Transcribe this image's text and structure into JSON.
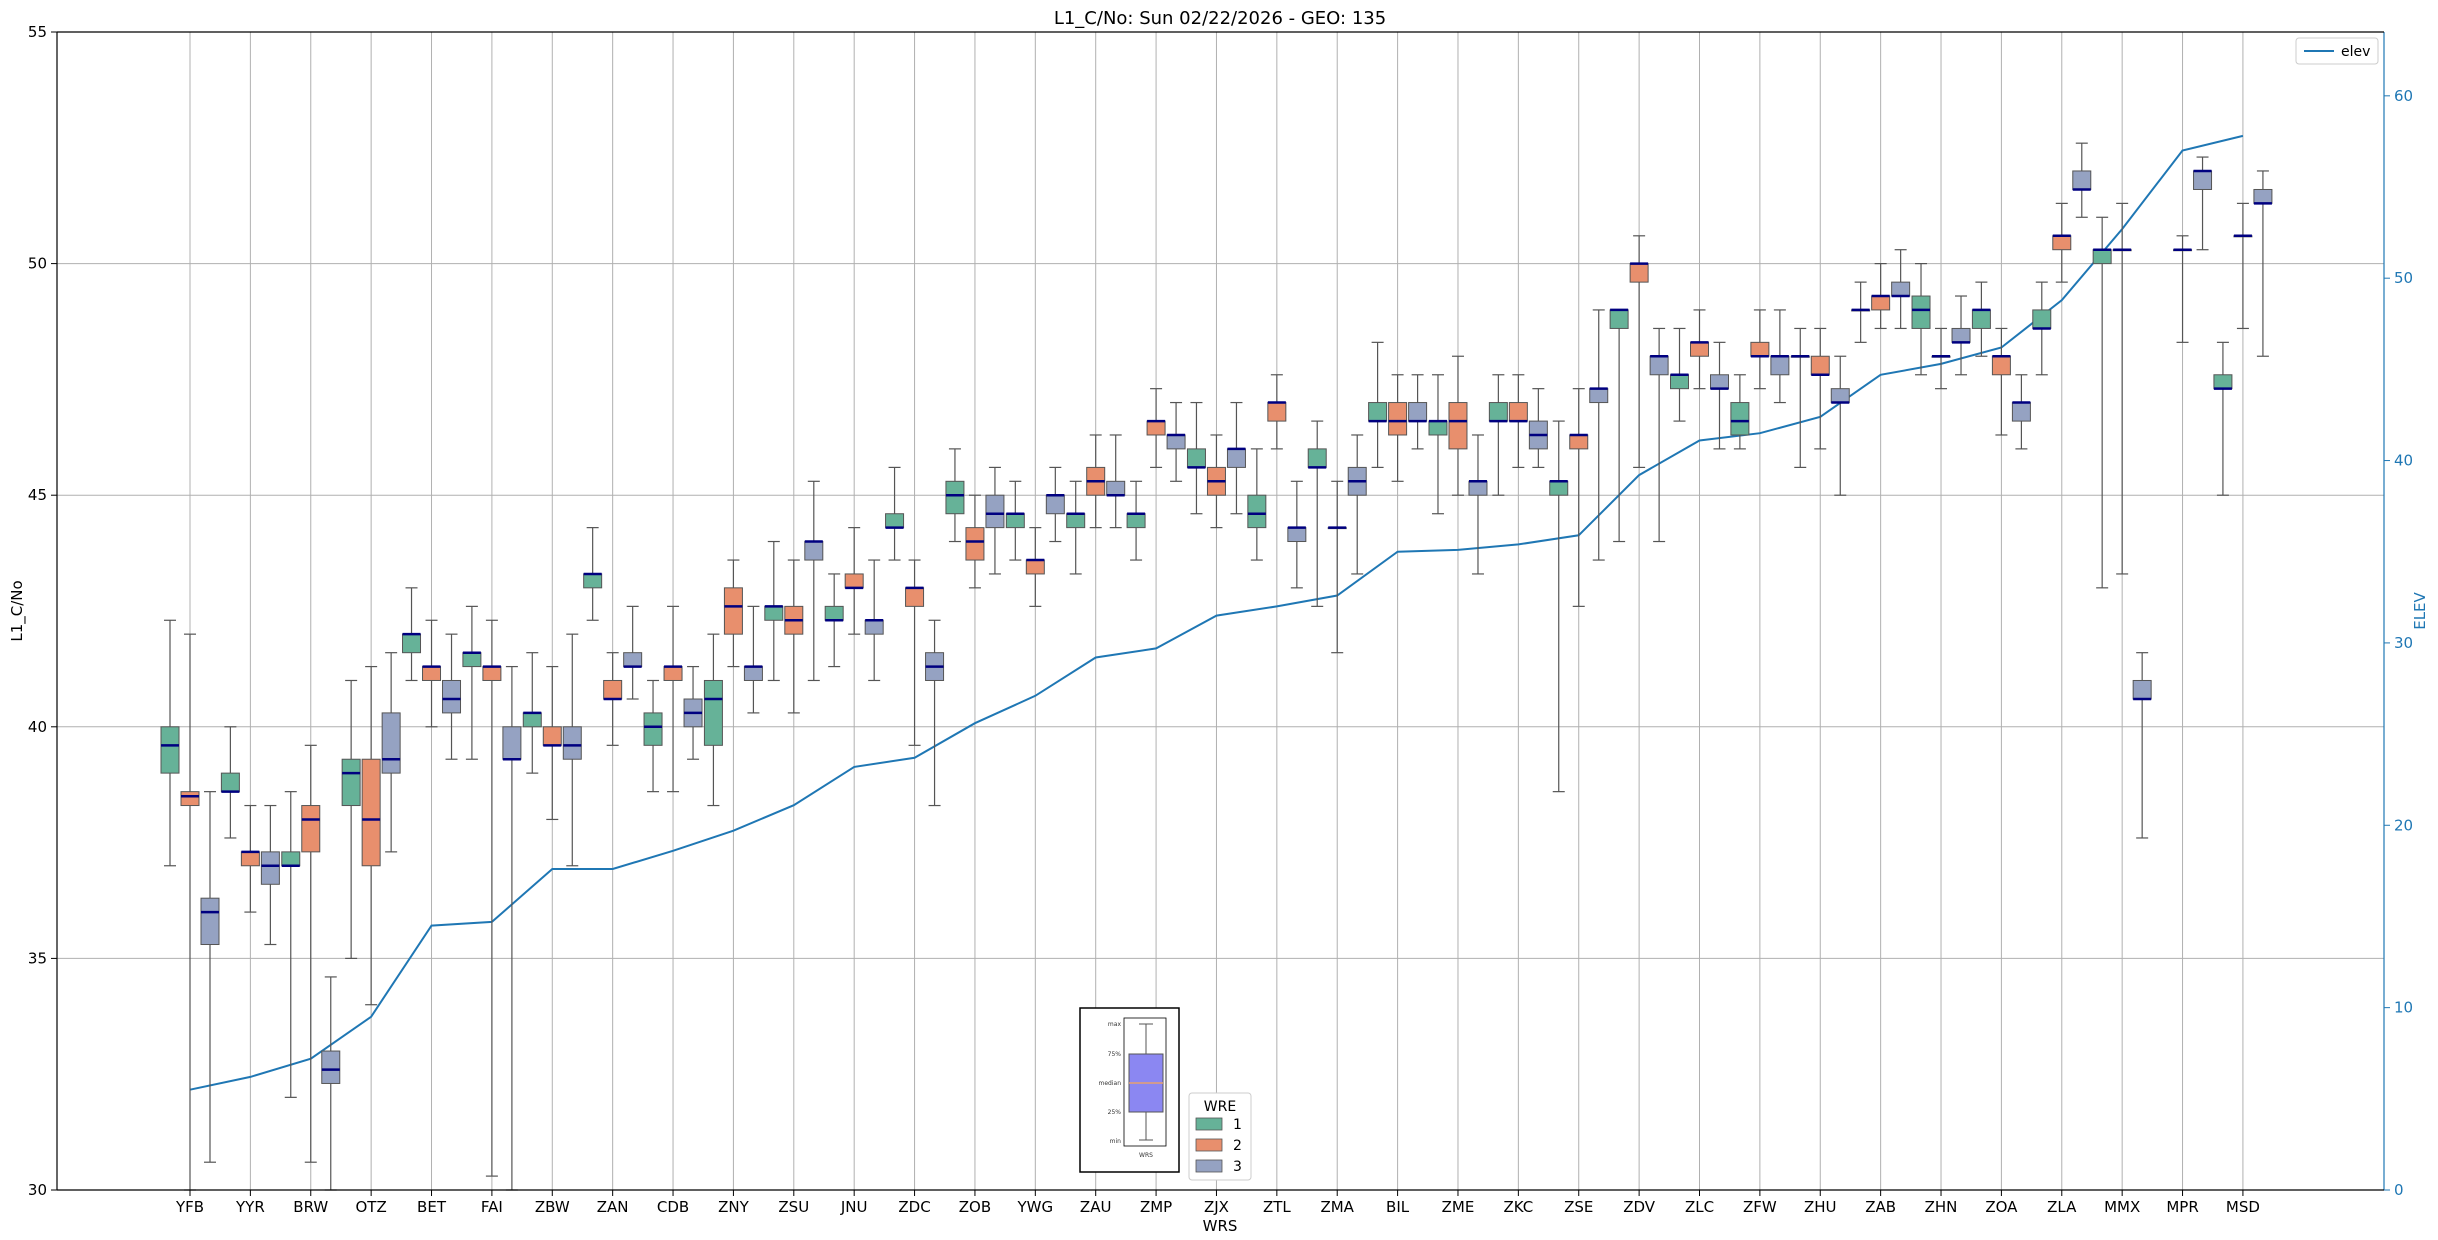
{
  "chart_data": {
    "type": "box",
    "title": "L1_C/No: Sun 02/22/2026 - GEO: 135",
    "xlabel": "WRS",
    "ylabel": "L1_C/No",
    "y2label": "ELEV",
    "ylim": [
      30,
      55
    ],
    "y2lim": [
      0,
      63.5
    ],
    "yticks": [
      30,
      35,
      40,
      45,
      50,
      55
    ],
    "y2ticks": [
      0,
      10,
      20,
      30,
      40,
      50,
      60
    ],
    "grid": true,
    "categories": [
      "YFB",
      "YYR",
      "BRW",
      "OTZ",
      "BET",
      "FAI",
      "ZBW",
      "ZAN",
      "CDB",
      "ZNY",
      "ZSU",
      "JNU",
      "ZDC",
      "ZOB",
      "YWG",
      "ZAU",
      "ZMP",
      "ZJX",
      "ZTL",
      "ZMA",
      "BIL",
      "ZME",
      "ZKC",
      "ZSE",
      "ZDV",
      "ZLC",
      "ZFW",
      "ZHU",
      "ZAB",
      "ZHN",
      "ZOA",
      "ZLA",
      "MMX",
      "MPR",
      "MSD"
    ],
    "wre_legend": {
      "title": "WRE",
      "entries": [
        "1",
        "2",
        "3"
      ]
    },
    "series_colors": {
      "1": "#66b298",
      "2": "#e88f6d",
      "3": "#95a2c2"
    },
    "elev_legend": "elev",
    "elev_color": "#1f77b4",
    "elev": [
      5.5,
      6.2,
      7.2,
      9.5,
      14.5,
      14.7,
      17.6,
      17.6,
      18.6,
      19.7,
      21.1,
      23.2,
      23.7,
      25.6,
      27.1,
      29.2,
      29.7,
      31.5,
      32.0,
      32.6,
      35.0,
      35.1,
      35.4,
      35.9,
      39.2,
      41.1,
      41.5,
      42.4,
      44.7,
      45.3,
      46.2,
      48.8,
      52.7,
      57.0,
      57.8
    ],
    "boxes": [
      {
        "cat": "YFB",
        "wre": "1",
        "min": 37.0,
        "q1": 39.0,
        "median": 39.6,
        "q3": 40.0,
        "max": 42.3
      },
      {
        "cat": "YFB",
        "wre": "2",
        "min": 30.0,
        "q1": 38.3,
        "median": 38.5,
        "q3": 38.6,
        "max": 42.0
      },
      {
        "cat": "YFB",
        "wre": "3",
        "min": 30.6,
        "q1": 35.3,
        "median": 36.0,
        "q3": 36.3,
        "max": 38.6
      },
      {
        "cat": "YYR",
        "wre": "1",
        "min": 37.6,
        "q1": 38.6,
        "median": 38.6,
        "q3": 39.0,
        "max": 40.0
      },
      {
        "cat": "YYR",
        "wre": "2",
        "min": 36.0,
        "q1": 37.0,
        "median": 37.3,
        "q3": 37.3,
        "max": 38.3
      },
      {
        "cat": "YYR",
        "wre": "3",
        "min": 35.3,
        "q1": 36.6,
        "median": 37.0,
        "q3": 37.3,
        "max": 38.3
      },
      {
        "cat": "BRW",
        "wre": "1",
        "min": 32.0,
        "q1": 37.0,
        "median": 37.0,
        "q3": 37.3,
        "max": 38.6
      },
      {
        "cat": "BRW",
        "wre": "2",
        "min": 30.6,
        "q1": 37.3,
        "median": 38.0,
        "q3": 38.3,
        "max": 39.6
      },
      {
        "cat": "BRW",
        "wre": "3",
        "min": 30.0,
        "q1": 32.3,
        "median": 32.6,
        "q3": 33.0,
        "max": 34.6
      },
      {
        "cat": "OTZ",
        "wre": "1",
        "min": 35.0,
        "q1": 38.3,
        "median": 39.0,
        "q3": 39.3,
        "max": 41.0
      },
      {
        "cat": "OTZ",
        "wre": "2",
        "min": 34.0,
        "q1": 37.0,
        "median": 38.0,
        "q3": 39.3,
        "max": 41.3
      },
      {
        "cat": "OTZ",
        "wre": "3",
        "min": 37.3,
        "q1": 39.0,
        "median": 39.3,
        "q3": 40.3,
        "max": 41.6
      },
      {
        "cat": "BET",
        "wre": "1",
        "min": 41.0,
        "q1": 41.6,
        "median": 42.0,
        "q3": 42.0,
        "max": 43.0
      },
      {
        "cat": "BET",
        "wre": "2",
        "min": 40.0,
        "q1": 41.0,
        "median": 41.3,
        "q3": 41.3,
        "max": 42.3
      },
      {
        "cat": "BET",
        "wre": "3",
        "min": 39.3,
        "q1": 40.3,
        "median": 40.6,
        "q3": 41.0,
        "max": 42.0
      },
      {
        "cat": "FAI",
        "wre": "1",
        "min": 39.3,
        "q1": 41.3,
        "median": 41.6,
        "q3": 41.6,
        "max": 42.6
      },
      {
        "cat": "FAI",
        "wre": "2",
        "min": 30.3,
        "q1": 41.0,
        "median": 41.3,
        "q3": 41.3,
        "max": 42.3
      },
      {
        "cat": "FAI",
        "wre": "3",
        "min": 30.0,
        "q1": 39.3,
        "median": 39.3,
        "q3": 40.0,
        "max": 41.3
      },
      {
        "cat": "ZBW",
        "wre": "1",
        "min": 39.0,
        "q1": 40.0,
        "median": 40.3,
        "q3": 40.3,
        "max": 41.6
      },
      {
        "cat": "ZBW",
        "wre": "2",
        "min": 38.0,
        "q1": 39.6,
        "median": 39.6,
        "q3": 40.0,
        "max": 41.3
      },
      {
        "cat": "ZBW",
        "wre": "3",
        "min": 37.0,
        "q1": 39.3,
        "median": 39.6,
        "q3": 40.0,
        "max": 42.0
      },
      {
        "cat": "ZAN",
        "wre": "1",
        "min": 42.3,
        "q1": 43.0,
        "median": 43.3,
        "q3": 43.3,
        "max": 44.3
      },
      {
        "cat": "ZAN",
        "wre": "2",
        "min": 39.6,
        "q1": 40.6,
        "median": 40.6,
        "q3": 41.0,
        "max": 41.6
      },
      {
        "cat": "ZAN",
        "wre": "3",
        "min": 40.6,
        "q1": 41.3,
        "median": 41.3,
        "q3": 41.6,
        "max": 42.6
      },
      {
        "cat": "CDB",
        "wre": "1",
        "min": 38.6,
        "q1": 39.6,
        "median": 40.0,
        "q3": 40.3,
        "max": 41.0
      },
      {
        "cat": "CDB",
        "wre": "2",
        "min": 38.6,
        "q1": 41.0,
        "median": 41.3,
        "q3": 41.3,
        "max": 42.6
      },
      {
        "cat": "CDB",
        "wre": "3",
        "min": 39.3,
        "q1": 40.0,
        "median": 40.3,
        "q3": 40.6,
        "max": 41.3
      },
      {
        "cat": "ZNY",
        "wre": "1",
        "min": 38.3,
        "q1": 39.6,
        "median": 40.6,
        "q3": 41.0,
        "max": 42.0
      },
      {
        "cat": "ZNY",
        "wre": "2",
        "min": 41.3,
        "q1": 42.0,
        "median": 42.6,
        "q3": 43.0,
        "max": 43.6
      },
      {
        "cat": "ZNY",
        "wre": "3",
        "min": 40.3,
        "q1": 41.0,
        "median": 41.3,
        "q3": 41.3,
        "max": 42.6
      },
      {
        "cat": "ZSU",
        "wre": "1",
        "min": 41.0,
        "q1": 42.3,
        "median": 42.6,
        "q3": 42.6,
        "max": 44.0
      },
      {
        "cat": "ZSU",
        "wre": "2",
        "min": 40.3,
        "q1": 42.0,
        "median": 42.3,
        "q3": 42.6,
        "max": 43.6
      },
      {
        "cat": "ZSU",
        "wre": "3",
        "min": 41.0,
        "q1": 43.6,
        "median": 44.0,
        "q3": 44.0,
        "max": 45.3
      },
      {
        "cat": "JNU",
        "wre": "1",
        "min": 41.3,
        "q1": 42.3,
        "median": 42.3,
        "q3": 42.6,
        "max": 43.3
      },
      {
        "cat": "JNU",
        "wre": "2",
        "min": 42.0,
        "q1": 43.0,
        "median": 43.0,
        "q3": 43.3,
        "max": 44.3
      },
      {
        "cat": "JNU",
        "wre": "3",
        "min": 41.0,
        "q1": 42.0,
        "median": 42.3,
        "q3": 42.3,
        "max": 43.6
      },
      {
        "cat": "ZDC",
        "wre": "1",
        "min": 43.6,
        "q1": 44.3,
        "median": 44.3,
        "q3": 44.6,
        "max": 45.6
      },
      {
        "cat": "ZDC",
        "wre": "2",
        "min": 39.6,
        "q1": 42.6,
        "median": 43.0,
        "q3": 43.0,
        "max": 43.6
      },
      {
        "cat": "ZDC",
        "wre": "3",
        "min": 38.3,
        "q1": 41.0,
        "median": 41.3,
        "q3": 41.6,
        "max": 42.3
      },
      {
        "cat": "ZOB",
        "wre": "1",
        "min": 44.0,
        "q1": 44.6,
        "median": 45.0,
        "q3": 45.3,
        "max": 46.0
      },
      {
        "cat": "ZOB",
        "wre": "2",
        "min": 43.0,
        "q1": 43.6,
        "median": 44.0,
        "q3": 44.3,
        "max": 45.0
      },
      {
        "cat": "ZOB",
        "wre": "3",
        "min": 43.3,
        "q1": 44.3,
        "median": 44.6,
        "q3": 45.0,
        "max": 45.6
      },
      {
        "cat": "YWG",
        "wre": "1",
        "min": 43.6,
        "q1": 44.3,
        "median": 44.6,
        "q3": 44.6,
        "max": 45.3
      },
      {
        "cat": "YWG",
        "wre": "2",
        "min": 42.6,
        "q1": 43.3,
        "median": 43.6,
        "q3": 43.6,
        "max": 44.3
      },
      {
        "cat": "YWG",
        "wre": "3",
        "min": 44.0,
        "q1": 44.6,
        "median": 45.0,
        "q3": 45.0,
        "max": 45.6
      },
      {
        "cat": "ZAU",
        "wre": "1",
        "min": 43.3,
        "q1": 44.3,
        "median": 44.6,
        "q3": 44.6,
        "max": 45.3
      },
      {
        "cat": "ZAU",
        "wre": "2",
        "min": 44.3,
        "q1": 45.0,
        "median": 45.3,
        "q3": 45.6,
        "max": 46.3
      },
      {
        "cat": "ZAU",
        "wre": "3",
        "min": 44.3,
        "q1": 45.0,
        "median": 45.0,
        "q3": 45.3,
        "max": 46.3
      },
      {
        "cat": "ZMP",
        "wre": "1",
        "min": 43.6,
        "q1": 44.3,
        "median": 44.6,
        "q3": 44.6,
        "max": 45.3
      },
      {
        "cat": "ZMP",
        "wre": "2",
        "min": 45.6,
        "q1": 46.3,
        "median": 46.6,
        "q3": 46.6,
        "max": 47.3
      },
      {
        "cat": "ZMP",
        "wre": "3",
        "min": 45.3,
        "q1": 46.0,
        "median": 46.3,
        "q3": 46.3,
        "max": 47.0
      },
      {
        "cat": "ZJX",
        "wre": "1",
        "min": 44.6,
        "q1": 45.6,
        "median": 45.6,
        "q3": 46.0,
        "max": 47.0
      },
      {
        "cat": "ZJX",
        "wre": "2",
        "min": 44.3,
        "q1": 45.0,
        "median": 45.3,
        "q3": 45.6,
        "max": 46.3
      },
      {
        "cat": "ZJX",
        "wre": "3",
        "min": 44.6,
        "q1": 45.6,
        "median": 46.0,
        "q3": 46.0,
        "max": 47.0
      },
      {
        "cat": "ZTL",
        "wre": "1",
        "min": 43.6,
        "q1": 44.3,
        "median": 44.6,
        "q3": 45.0,
        "max": 46.0
      },
      {
        "cat": "ZTL",
        "wre": "2",
        "min": 46.0,
        "q1": 46.6,
        "median": 47.0,
        "q3": 47.0,
        "max": 47.6
      },
      {
        "cat": "ZTL",
        "wre": "3",
        "min": 43.0,
        "q1": 44.0,
        "median": 44.3,
        "q3": 44.3,
        "max": 45.3
      },
      {
        "cat": "ZMA",
        "wre": "1",
        "min": 42.6,
        "q1": 45.6,
        "median": 45.6,
        "q3": 46.0,
        "max": 46.6
      },
      {
        "cat": "ZMA",
        "wre": "2",
        "min": 41.6,
        "q1": 44.3,
        "median": 44.3,
        "q3": 44.3,
        "max": 45.3
      },
      {
        "cat": "ZMA",
        "wre": "3",
        "min": 43.3,
        "q1": 45.0,
        "median": 45.3,
        "q3": 45.6,
        "max": 46.3
      },
      {
        "cat": "BIL",
        "wre": "1",
        "min": 45.6,
        "q1": 46.6,
        "median": 46.6,
        "q3": 47.0,
        "max": 48.3
      },
      {
        "cat": "BIL",
        "wre": "2",
        "min": 45.3,
        "q1": 46.3,
        "median": 46.6,
        "q3": 47.0,
        "max": 47.6
      },
      {
        "cat": "BIL",
        "wre": "3",
        "min": 46.0,
        "q1": 46.6,
        "median": 46.6,
        "q3": 47.0,
        "max": 47.6
      },
      {
        "cat": "ZME",
        "wre": "1",
        "min": 44.6,
        "q1": 46.3,
        "median": 46.6,
        "q3": 46.6,
        "max": 47.6
      },
      {
        "cat": "ZME",
        "wre": "2",
        "min": 45.0,
        "q1": 46.0,
        "median": 46.6,
        "q3": 47.0,
        "max": 48.0
      },
      {
        "cat": "ZME",
        "wre": "3",
        "min": 43.3,
        "q1": 45.0,
        "median": 45.3,
        "q3": 45.3,
        "max": 46.3
      },
      {
        "cat": "ZKC",
        "wre": "1",
        "min": 45.0,
        "q1": 46.6,
        "median": 46.6,
        "q3": 47.0,
        "max": 47.6
      },
      {
        "cat": "ZKC",
        "wre": "2",
        "min": 45.6,
        "q1": 46.6,
        "median": 46.6,
        "q3": 47.0,
        "max": 47.6
      },
      {
        "cat": "ZKC",
        "wre": "3",
        "min": 45.6,
        "q1": 46.0,
        "median": 46.3,
        "q3": 46.6,
        "max": 47.3
      },
      {
        "cat": "ZSE",
        "wre": "1",
        "min": 38.6,
        "q1": 45.0,
        "median": 45.3,
        "q3": 45.3,
        "max": 46.6
      },
      {
        "cat": "ZSE",
        "wre": "2",
        "min": 42.6,
        "q1": 46.0,
        "median": 46.3,
        "q3": 46.3,
        "max": 47.3
      },
      {
        "cat": "ZSE",
        "wre": "3",
        "min": 43.6,
        "q1": 47.0,
        "median": 47.3,
        "q3": 47.3,
        "max": 49.0
      },
      {
        "cat": "ZDV",
        "wre": "1",
        "min": 44.0,
        "q1": 48.6,
        "median": 49.0,
        "q3": 49.0,
        "max": 49.0
      },
      {
        "cat": "ZDV",
        "wre": "2",
        "min": 45.6,
        "q1": 49.6,
        "median": 50.0,
        "q3": 50.0,
        "max": 50.6
      },
      {
        "cat": "ZDV",
        "wre": "3",
        "min": 44.0,
        "q1": 47.6,
        "median": 48.0,
        "q3": 48.0,
        "max": 48.6
      },
      {
        "cat": "ZLC",
        "wre": "1",
        "min": 46.6,
        "q1": 47.3,
        "median": 47.6,
        "q3": 47.6,
        "max": 48.6
      },
      {
        "cat": "ZLC",
        "wre": "2",
        "min": 47.3,
        "q1": 48.0,
        "median": 48.3,
        "q3": 48.3,
        "max": 49.0
      },
      {
        "cat": "ZLC",
        "wre": "3",
        "min": 46.0,
        "q1": 47.3,
        "median": 47.3,
        "q3": 47.6,
        "max": 48.3
      },
      {
        "cat": "ZFW",
        "wre": "1",
        "min": 46.0,
        "q1": 46.3,
        "median": 46.6,
        "q3": 47.0,
        "max": 47.6
      },
      {
        "cat": "ZFW",
        "wre": "2",
        "min": 47.3,
        "q1": 48.0,
        "median": 48.0,
        "q3": 48.3,
        "max": 49.0
      },
      {
        "cat": "ZFW",
        "wre": "3",
        "min": 47.0,
        "q1": 47.6,
        "median": 48.0,
        "q3": 48.0,
        "max": 49.0
      },
      {
        "cat": "ZHU",
        "wre": "1",
        "min": 45.6,
        "q1": 48.0,
        "median": 48.0,
        "q3": 48.0,
        "max": 48.6
      },
      {
        "cat": "ZHU",
        "wre": "2",
        "min": 46.0,
        "q1": 47.6,
        "median": 47.6,
        "q3": 48.0,
        "max": 48.6
      },
      {
        "cat": "ZHU",
        "wre": "3",
        "min": 45.0,
        "q1": 47.0,
        "median": 47.0,
        "q3": 47.3,
        "max": 48.0
      },
      {
        "cat": "ZAB",
        "wre": "1",
        "min": 48.3,
        "q1": 49.0,
        "median": 49.0,
        "q3": 49.0,
        "max": 49.6
      },
      {
        "cat": "ZAB",
        "wre": "2",
        "min": 48.6,
        "q1": 49.0,
        "median": 49.3,
        "q3": 49.3,
        "max": 50.0
      },
      {
        "cat": "ZAB",
        "wre": "3",
        "min": 48.6,
        "q1": 49.3,
        "median": 49.3,
        "q3": 49.6,
        "max": 50.3
      },
      {
        "cat": "ZHN",
        "wre": "1",
        "min": 47.6,
        "q1": 48.6,
        "median": 49.0,
        "q3": 49.3,
        "max": 50.0
      },
      {
        "cat": "ZHN",
        "wre": "2",
        "min": 47.3,
        "q1": 48.0,
        "median": 48.0,
        "q3": 48.0,
        "max": 48.6
      },
      {
        "cat": "ZHN",
        "wre": "3",
        "min": 47.6,
        "q1": 48.3,
        "median": 48.3,
        "q3": 48.6,
        "max": 49.3
      },
      {
        "cat": "ZOA",
        "wre": "1",
        "min": 48.0,
        "q1": 48.6,
        "median": 49.0,
        "q3": 49.0,
        "max": 49.6
      },
      {
        "cat": "ZOA",
        "wre": "2",
        "min": 46.3,
        "q1": 47.6,
        "median": 48.0,
        "q3": 48.0,
        "max": 48.6
      },
      {
        "cat": "ZOA",
        "wre": "3",
        "min": 46.0,
        "q1": 46.6,
        "median": 47.0,
        "q3": 47.0,
        "max": 47.6
      },
      {
        "cat": "ZLA",
        "wre": "1",
        "min": 47.6,
        "q1": 48.6,
        "median": 48.6,
        "q3": 49.0,
        "max": 49.6
      },
      {
        "cat": "ZLA",
        "wre": "2",
        "min": 49.6,
        "q1": 50.3,
        "median": 50.6,
        "q3": 50.6,
        "max": 51.3
      },
      {
        "cat": "ZLA",
        "wre": "3",
        "min": 51.0,
        "q1": 51.6,
        "median": 51.6,
        "q3": 52.0,
        "max": 52.6
      },
      {
        "cat": "MMX",
        "wre": "1",
        "min": 43.0,
        "q1": 50.0,
        "median": 50.3,
        "q3": 50.3,
        "max": 51.0
      },
      {
        "cat": "MMX",
        "wre": "2",
        "min": 43.3,
        "q1": 50.3,
        "median": 50.3,
        "q3": 50.3,
        "max": 51.3
      },
      {
        "cat": "MMX",
        "wre": "3",
        "min": 37.6,
        "q1": 40.6,
        "median": 40.6,
        "q3": 41.0,
        "max": 41.6
      },
      {
        "cat": "MPR",
        "wre": "2",
        "min": 48.3,
        "q1": 50.3,
        "median": 50.3,
        "q3": 50.3,
        "max": 50.6
      },
      {
        "cat": "MPR",
        "wre": "3",
        "min": 50.3,
        "q1": 51.6,
        "median": 52.0,
        "q3": 52.0,
        "max": 52.3
      },
      {
        "cat": "MSD",
        "wre": "1",
        "min": 45.0,
        "q1": 47.3,
        "median": 47.3,
        "q3": 47.6,
        "max": 48.3
      },
      {
        "cat": "MSD",
        "wre": "2",
        "min": 48.6,
        "q1": 50.6,
        "median": 50.6,
        "q3": 50.6,
        "max": 51.3
      },
      {
        "cat": "MSD",
        "wre": "3",
        "min": 48.0,
        "q1": 51.3,
        "median": 51.3,
        "q3": 51.6,
        "max": 52.0
      }
    ],
    "inset": {
      "labels": [
        "max",
        "75%",
        "median",
        "25%",
        "min"
      ],
      "xlabel": "WRS"
    }
  }
}
